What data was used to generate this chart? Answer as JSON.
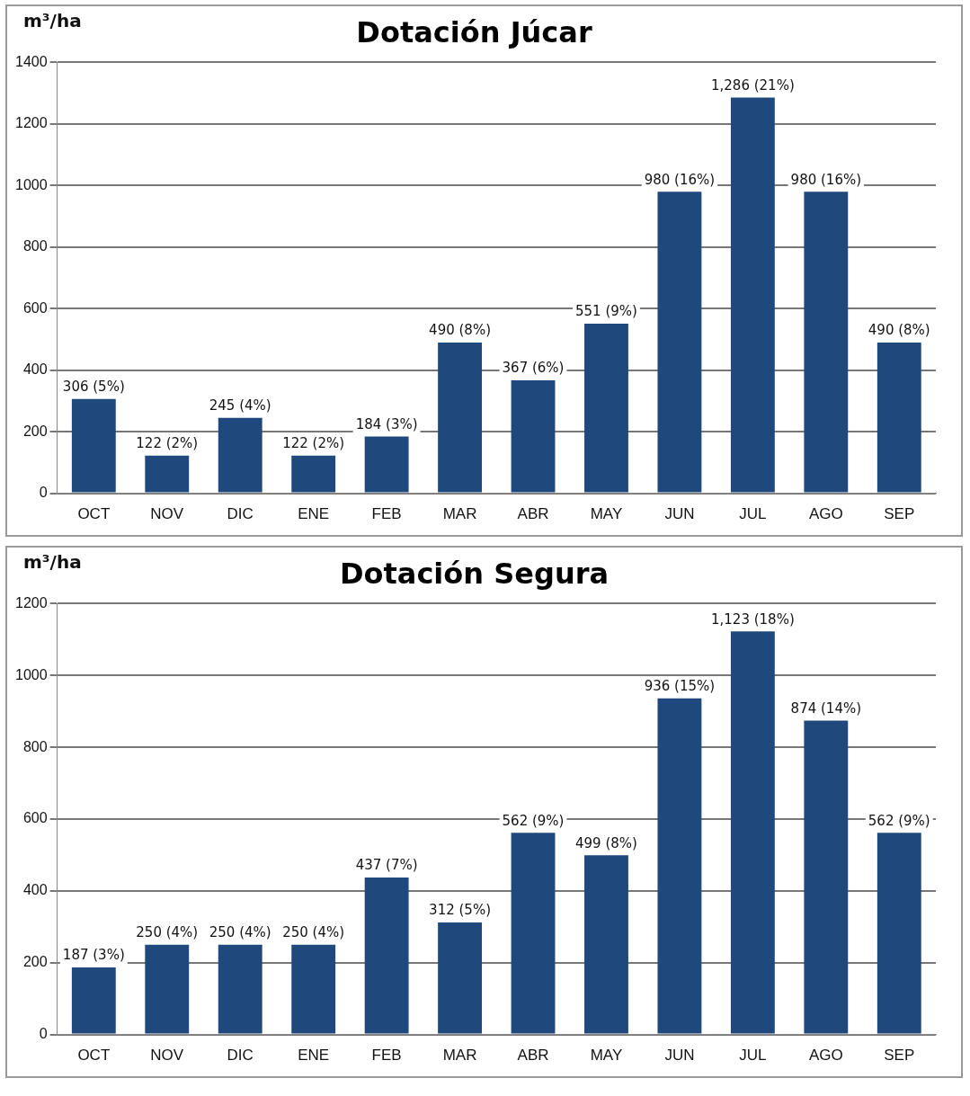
{
  "chart_data": [
    {
      "type": "bar",
      "title": "Dotación Júcar",
      "ylabel": "m³/ha",
      "categories": [
        "OCT",
        "NOV",
        "DIC",
        "ENE",
        "FEB",
        "MAR",
        "ABR",
        "MAY",
        "JUN",
        "JUL",
        "AGO",
        "SEP"
      ],
      "values": [
        306,
        122,
        245,
        122,
        184,
        490,
        367,
        551,
        980,
        1286,
        980,
        490
      ],
      "value_labels": [
        "306 (5%)",
        "122 (2%)",
        "245 (4%)",
        "122 (2%)",
        "184 (3%)",
        "490 (8%)",
        "367 (6%)",
        "551 (9%)",
        "980 (16%)",
        "1,286 (21%)",
        "980 (16%)",
        "490 (8%)"
      ],
      "color": "#1f497d",
      "ylim": [
        0,
        1400
      ],
      "yticks": [
        0,
        200,
        400,
        600,
        800,
        1000,
        1200,
        1400
      ],
      "grid": "y",
      "legend": false
    },
    {
      "type": "bar",
      "title": "Dotación Segura",
      "ylabel": "m³/ha",
      "categories": [
        "OCT",
        "NOV",
        "DIC",
        "ENE",
        "FEB",
        "MAR",
        "ABR",
        "MAY",
        "JUN",
        "JUL",
        "AGO",
        "SEP"
      ],
      "values": [
        187,
        250,
        250,
        250,
        437,
        312,
        562,
        499,
        936,
        1123,
        874,
        562
      ],
      "value_labels": [
        "187 (3%)",
        "250 (4%)",
        "250 (4%)",
        "250 (4%)",
        "437 (7%)",
        "312 (5%)",
        "562 (9%)",
        "499 (8%)",
        "936 (15%)",
        "1,123 (18%)",
        "874 (14%)",
        "562 (9%)"
      ],
      "color": "#1f497d",
      "ylim": [
        0,
        1200
      ],
      "yticks": [
        0,
        200,
        400,
        600,
        800,
        1000,
        1200
      ],
      "grid": "y",
      "legend": false
    }
  ]
}
